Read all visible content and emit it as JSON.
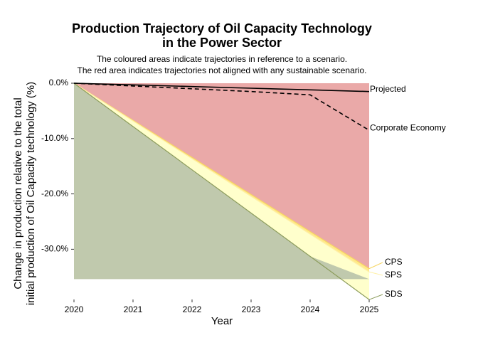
{
  "chart_data": {
    "type": "area",
    "title": [
      "Production Trajectory of Oil Capacity Technology",
      "in the Power Sector"
    ],
    "subtitle": [
      "The coloured areas indicate trajectories in reference to a scenario.",
      "The red area indicates trajectories not aligned with any sustainable scenario."
    ],
    "x_label": "Year",
    "y_label": [
      "Change in production relative to the total",
      "initial production of Oil Capacity technology (%)"
    ],
    "x": [
      2020,
      2021,
      2022,
      2023,
      2024,
      2025
    ],
    "xlim": [
      2020,
      2025
    ],
    "xticks": [
      2020,
      2021,
      2022,
      2023,
      2024,
      2025
    ],
    "ylim": [
      -35.4,
      0
    ],
    "yticks": [
      {
        "value": 0,
        "label": "0.0%"
      },
      {
        "value": -10,
        "label": "-10.0%"
      },
      {
        "value": -20,
        "label": "-20.0%"
      },
      {
        "value": -30,
        "label": "-30.0%"
      }
    ],
    "areas": [
      {
        "name": "CPS",
        "color": "#ffe98a",
        "values": [
          0,
          -6.7,
          -13.4,
          -20.1,
          -26.8,
          -33.5
        ]
      },
      {
        "name": "SPS",
        "color": "#ffffcc",
        "values": [
          0,
          -6.82,
          -13.64,
          -20.46,
          -27.28,
          -34.1
        ]
      },
      {
        "name": "SDS",
        "color": "#c0c9ad",
        "values": [
          0,
          -7.82,
          -15.64,
          -23.46,
          -31.28,
          -39.1
        ]
      }
    ],
    "above_color": "#eaa9a8",
    "series": [
      {
        "name": "Projected",
        "color": "#000000",
        "dash": false,
        "values": [
          0,
          -0.3,
          -0.6,
          -0.9,
          -1.2,
          -1.5
        ]
      },
      {
        "name": "Corporate Economy",
        "color": "#000000",
        "dash": true,
        "values": [
          0,
          -0.5,
          -1.0,
          -1.5,
          -2.1,
          -8.5
        ]
      }
    ]
  }
}
